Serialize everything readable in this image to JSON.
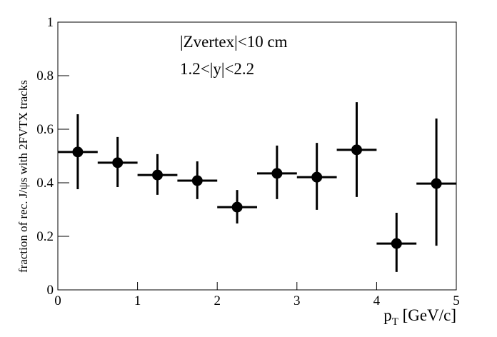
{
  "chart_data": {
    "type": "errorbar",
    "ylabel": "fraction of rec. J/ψs with 2FVTX tracks",
    "xlabel": [
      "p",
      "T",
      " [GeV/c]"
    ],
    "annotations": [
      "|Zvertex|<10 cm",
      "1.2<|y|<2.2"
    ],
    "x": [
      0.25,
      0.75,
      1.25,
      1.75,
      2.25,
      2.75,
      3.25,
      3.75,
      4.25,
      4.75
    ],
    "x_error": [
      0.25,
      0.25,
      0.25,
      0.25,
      0.25,
      0.25,
      0.25,
      0.25,
      0.25,
      0.25
    ],
    "series": [
      {
        "color": "#000000",
        "values": [
          0.515,
          0.475,
          0.429,
          0.408,
          0.309,
          0.435,
          0.421,
          0.523,
          0.173,
          0.397
        ],
        "error_plus": [
          0.141,
          0.096,
          0.078,
          0.072,
          0.064,
          0.104,
          0.128,
          0.178,
          0.115,
          0.243
        ],
        "error_minus": [
          0.139,
          0.091,
          0.074,
          0.069,
          0.061,
          0.096,
          0.122,
          0.176,
          0.106,
          0.232
        ]
      }
    ],
    "xlim": [
      0,
      5
    ],
    "xticks": [
      0,
      1,
      2,
      3,
      4,
      5
    ],
    "ylim": [
      0,
      1
    ],
    "yticks": [
      0,
      0.2,
      0.4,
      0.6,
      0.8,
      1
    ]
  }
}
